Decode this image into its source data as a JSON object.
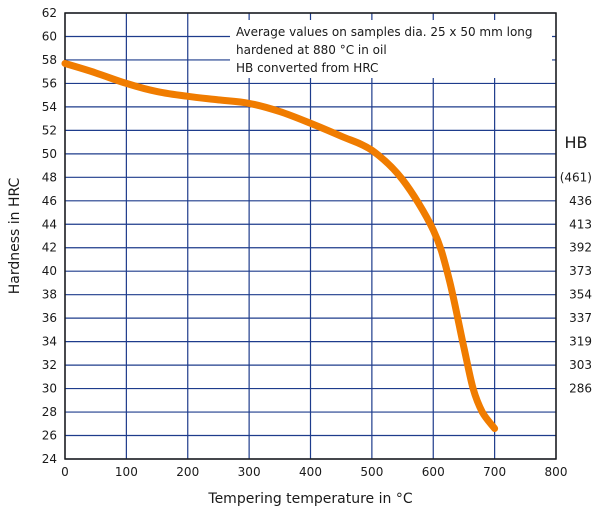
{
  "chart_data": {
    "type": "line",
    "xlabel": "Tempering temperature in °C",
    "ylabel": "Hardness in HRC",
    "xlim": [
      0,
      800
    ],
    "ylim": [
      24,
      62
    ],
    "x_ticks": [
      0,
      100,
      200,
      300,
      400,
      500,
      600,
      700,
      800
    ],
    "y_ticks": [
      24,
      26,
      28,
      30,
      32,
      34,
      36,
      38,
      40,
      42,
      44,
      46,
      48,
      50,
      52,
      54,
      56,
      58,
      60,
      62
    ],
    "grid": true,
    "series": [
      {
        "color": "#f07c00",
        "points": [
          [
            0,
            57.7
          ],
          [
            50,
            56.9
          ],
          [
            100,
            56.0
          ],
          [
            150,
            55.3
          ],
          [
            200,
            54.9
          ],
          [
            250,
            54.6
          ],
          [
            300,
            54.3
          ],
          [
            350,
            53.6
          ],
          [
            400,
            52.6
          ],
          [
            450,
            51.5
          ],
          [
            500,
            50.3
          ],
          [
            550,
            47.8
          ],
          [
            600,
            43.5
          ],
          [
            625,
            39.5
          ],
          [
            650,
            33.5
          ],
          [
            665,
            30.0
          ],
          [
            680,
            28.0
          ],
          [
            700,
            26.6
          ]
        ]
      }
    ],
    "annotation": [
      "Average values on samples dia. 25 x 50 mm long",
      "hardened at 880 °C in oil",
      "HB converted from HRC"
    ],
    "secondary_axis": {
      "title": "HB",
      "labels": [
        {
          "hrc": 48,
          "text": "(461)"
        },
        {
          "hrc": 46,
          "text": "436"
        },
        {
          "hrc": 44,
          "text": "413"
        },
        {
          "hrc": 42,
          "text": "392"
        },
        {
          "hrc": 40,
          "text": "373"
        },
        {
          "hrc": 38,
          "text": "354"
        },
        {
          "hrc": 36,
          "text": "337"
        },
        {
          "hrc": 34,
          "text": "319"
        },
        {
          "hrc": 32,
          "text": "303"
        },
        {
          "hrc": 30,
          "text": "286"
        }
      ]
    }
  }
}
